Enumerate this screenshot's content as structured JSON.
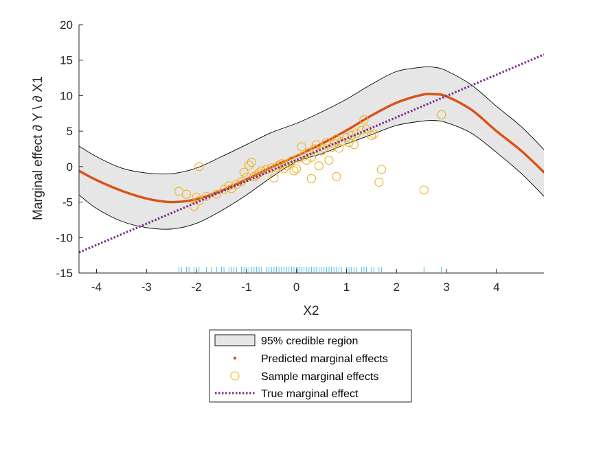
{
  "chart_data": {
    "type": "line",
    "xlabel": "X2",
    "ylabel": "Marginal effect ∂ Y \\ ∂ X1",
    "xlim": [
      -4.35,
      4.95
    ],
    "ylim": [
      -15,
      20
    ],
    "xticks": [
      -4,
      -3,
      -2,
      -1,
      0,
      1,
      2,
      3,
      4
    ],
    "xtick_labels": [
      "-4",
      "-3",
      "-2",
      "-1",
      "0",
      "1",
      "2",
      "3",
      "4"
    ],
    "yticks": [
      -15,
      -10,
      -5,
      0,
      5,
      10,
      15,
      20
    ],
    "ytick_labels": [
      "-15",
      "-10",
      "-5",
      "0",
      "5",
      "10",
      "15",
      "20"
    ],
    "grid": false,
    "legend_position": "below",
    "series": [
      {
        "name": "95% credible region",
        "kind": "band",
        "color": "#e6e6e6",
        "edge_color": "#000000",
        "x": [
          -4.35,
          -4,
          -3.5,
          -3,
          -2.5,
          -2,
          -1.5,
          -1,
          -0.5,
          0,
          0.5,
          1,
          1.5,
          2,
          2.5,
          2.75,
          3,
          3.5,
          4,
          4.5,
          4.95
        ],
        "lower": [
          -4.0,
          -5.9,
          -7.7,
          -8.6,
          -8.8,
          -8.0,
          -6.2,
          -4.0,
          -1.5,
          0.7,
          1.8,
          3.2,
          4.5,
          5.8,
          6.4,
          6.5,
          6.2,
          4.7,
          2.0,
          -1.0,
          -4.2
        ],
        "upper": [
          2.9,
          1.4,
          -0.2,
          -0.9,
          -1.0,
          -0.2,
          1.4,
          3.1,
          4.8,
          6.1,
          7.7,
          9.5,
          11.6,
          13.4,
          14.0,
          14.0,
          13.5,
          11.5,
          8.5,
          5.6,
          2.4
        ]
      },
      {
        "name": "Predicted marginal effects",
        "kind": "line",
        "color": "#d95319",
        "x": [
          -4.35,
          -4,
          -3.5,
          -3,
          -2.5,
          -2,
          -1.5,
          -1,
          -0.5,
          0,
          0.5,
          1,
          1.5,
          2,
          2.5,
          2.75,
          3,
          3.5,
          4,
          4.5,
          4.95
        ],
        "y": [
          -0.6,
          -1.9,
          -3.4,
          -4.5,
          -5.0,
          -4.6,
          -3.4,
          -1.8,
          -0.1,
          1.5,
          3.2,
          5.1,
          7.2,
          9.0,
          10.1,
          10.2,
          9.9,
          8.0,
          5.0,
          2.2,
          -0.8
        ]
      },
      {
        "name": "Sample marginal effects",
        "kind": "scatter",
        "color": "#edb120",
        "x": [
          -2.35,
          -2.2,
          -2.05,
          -2.0,
          -1.95,
          -1.8,
          -1.6,
          -1.45,
          -1.35,
          -1.3,
          -1.2,
          -1.1,
          -1.05,
          -1.0,
          -0.95,
          -0.9,
          -0.85,
          -0.8,
          -0.75,
          -0.7,
          -0.6,
          -0.5,
          -0.45,
          -0.4,
          -0.35,
          -0.3,
          -0.25,
          -0.2,
          -0.15,
          -0.1,
          -0.05,
          0.0,
          0.05,
          0.1,
          0.15,
          0.2,
          0.25,
          0.3,
          0.35,
          0.4,
          0.45,
          0.5,
          0.55,
          0.6,
          0.65,
          0.7,
          0.75,
          0.8,
          0.85,
          0.9,
          1.0,
          1.05,
          1.1,
          1.15,
          1.2,
          1.3,
          1.35,
          1.4,
          1.5,
          1.55,
          1.65,
          1.7,
          2.55,
          2.9,
          -1.95,
          0.3,
          0.8
        ],
        "y": [
          -3.5,
          -3.9,
          -5.6,
          -4.3,
          0.0,
          -4.2,
          -3.9,
          -3.2,
          -2.7,
          -3.1,
          -2.5,
          -2.1,
          -0.8,
          -1.5,
          0.2,
          0.6,
          -1.4,
          -1.2,
          -0.9,
          -0.6,
          -0.4,
          -0.2,
          -1.6,
          -0.1,
          0.2,
          0.4,
          -0.3,
          0.1,
          0.5,
          0.8,
          -0.6,
          -0.3,
          1.2,
          2.8,
          1.5,
          0.9,
          2.0,
          1.3,
          2.5,
          3.1,
          0.1,
          2.2,
          2.6,
          3.4,
          0.9,
          2.7,
          3.2,
          3.9,
          2.6,
          3.5,
          4.1,
          3.4,
          4.4,
          3.1,
          4.7,
          5.1,
          6.6,
          5.3,
          4.4,
          4.6,
          -2.2,
          -0.4,
          -3.3,
          7.3,
          -4.8,
          -1.7,
          -1.4
        ]
      },
      {
        "name": "True marginal effect",
        "kind": "line",
        "style": "dotted",
        "color": "#7e2f8e",
        "x": [
          -4.35,
          4.95
        ],
        "y": [
          -12.1,
          15.8
        ]
      }
    ],
    "rug": {
      "color": "#4dbeee",
      "x": [
        -2.35,
        -2.3,
        -2.2,
        -2.15,
        -2.05,
        -2.0,
        -1.95,
        -1.8,
        -1.7,
        -1.6,
        -1.5,
        -1.45,
        -1.35,
        -1.3,
        -1.25,
        -1.2,
        -1.1,
        -1.05,
        -1.0,
        -0.95,
        -0.9,
        -0.85,
        -0.8,
        -0.75,
        -0.7,
        -0.6,
        -0.55,
        -0.5,
        -0.45,
        -0.4,
        -0.35,
        -0.3,
        -0.25,
        -0.2,
        -0.15,
        -0.1,
        -0.05,
        0.0,
        0.02,
        0.05,
        0.1,
        0.15,
        0.2,
        0.25,
        0.3,
        0.35,
        0.4,
        0.45,
        0.5,
        0.55,
        0.6,
        0.65,
        0.7,
        0.75,
        0.8,
        0.85,
        0.9,
        1.0,
        1.05,
        1.1,
        1.15,
        1.2,
        1.3,
        1.35,
        1.4,
        1.5,
        1.55,
        1.65,
        1.7,
        2.55,
        2.9
      ]
    }
  }
}
